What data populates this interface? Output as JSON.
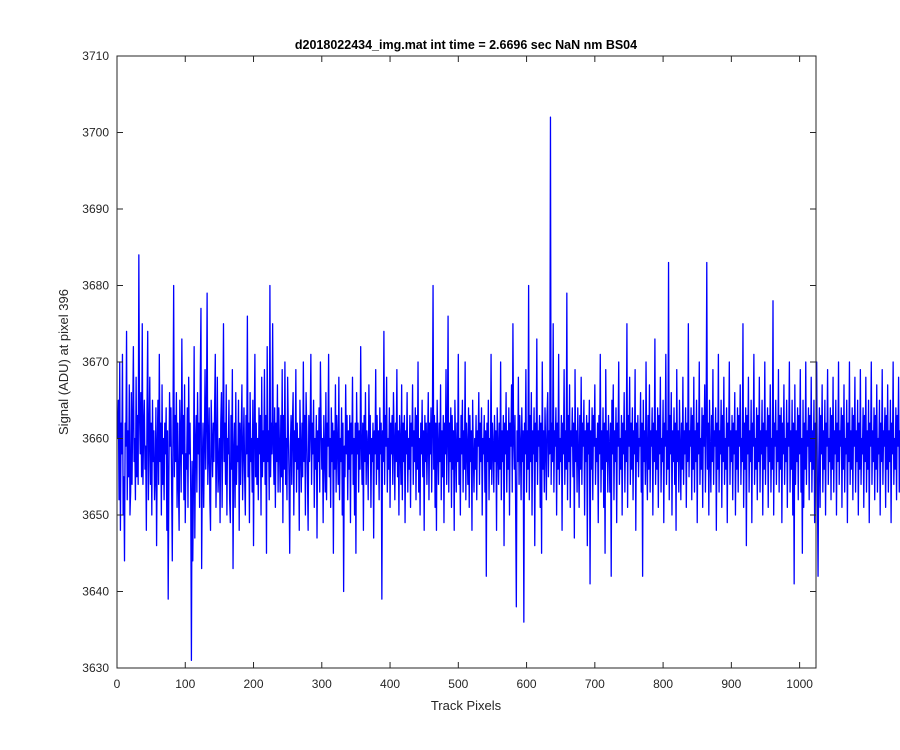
{
  "chart_data": {
    "type": "line",
    "title": "d2018022434_img.mat int time = 2.6696 sec  NaN nm BS04",
    "xlabel": "Track Pixels",
    "ylabel": "Signal (ADU) at pixel 396",
    "xlim": [
      0,
      1024
    ],
    "ylim": [
      3630,
      3710
    ],
    "xticks": [
      0,
      100,
      200,
      300,
      400,
      500,
      600,
      700,
      800,
      900,
      1000
    ],
    "yticks": [
      3630,
      3640,
      3650,
      3660,
      3670,
      3680,
      3690,
      3700,
      3710
    ],
    "xtick_labels": [
      "0",
      "100",
      "200",
      "300",
      "400",
      "500",
      "600",
      "700",
      "800",
      "900",
      "1000"
    ],
    "ytick_labels": [
      "3630",
      "3640",
      "3650",
      "3660",
      "3670",
      "3680",
      "3690",
      "3700",
      "3710"
    ],
    "grid": false,
    "series": [
      {
        "color": "#0000ff",
        "x_start": 1,
        "x_step": 1,
        "y": [
          3660,
          3665,
          3652,
          3670,
          3648,
          3662,
          3658,
          3671,
          3650,
          3655,
          3644,
          3662,
          3659,
          3674,
          3652,
          3661,
          3655,
          3667,
          3650,
          3653,
          3666,
          3654,
          3663,
          3672,
          3657,
          3660,
          3652,
          3668,
          3655,
          3663,
          3654,
          3684,
          3663,
          3658,
          3666,
          3655,
          3675,
          3654,
          3661,
          3665,
          3656,
          3659,
          3648,
          3664,
          3674,
          3652,
          3660,
          3668,
          3654,
          3662,
          3650,
          3665,
          3657,
          3661,
          3652,
          3655,
          3664,
          3646,
          3659,
          3665,
          3654,
          3671,
          3657,
          3662,
          3650,
          3667,
          3654,
          3660,
          3652,
          3662,
          3658,
          3664,
          3648,
          3661,
          3639,
          3655,
          3666,
          3659,
          3664,
          3654,
          3644,
          3661,
          3680,
          3655,
          3663,
          3657,
          3666,
          3651,
          3662,
          3654,
          3648,
          3665,
          3660,
          3653,
          3673,
          3658,
          3663,
          3652,
          3667,
          3649,
          3658,
          3656,
          3664,
          3651,
          3668,
          3658,
          3662,
          3653,
          3631,
          3657,
          3644,
          3654,
          3672,
          3647,
          3659,
          3663,
          3653,
          3666,
          3658,
          3662,
          3651,
          3668,
          3677,
          3643,
          3656,
          3662,
          3651,
          3659,
          3669,
          3656,
          3662,
          3679,
          3654,
          3658,
          3664,
          3652,
          3648,
          3665,
          3660,
          3655,
          3662,
          3657,
          3664,
          3671,
          3651,
          3658,
          3668,
          3653,
          3656,
          3660,
          3649,
          3662,
          3666,
          3651,
          3661,
          3675,
          3657,
          3662,
          3654,
          3667,
          3650,
          3660,
          3658,
          3665,
          3652,
          3649,
          3663,
          3656,
          3669,
          3643,
          3658,
          3662,
          3651,
          3666,
          3654,
          3659,
          3657,
          3665,
          3648,
          3662,
          3654,
          3661,
          3667,
          3652,
          3658,
          3664,
          3655,
          3650,
          3663,
          3658,
          3676,
          3655,
          3662,
          3649,
          3666,
          3657,
          3660,
          3653,
          3665,
          3646,
          3661,
          3671,
          3655,
          3662,
          3654,
          3660,
          3652,
          3664,
          3658,
          3663,
          3650,
          3668,
          3655,
          3661,
          3657,
          3669,
          3654,
          3663,
          3645,
          3672,
          3657,
          3661,
          3652,
          3680,
          3655,
          3662,
          3658,
          3675,
          3659,
          3654,
          3664,
          3651,
          3662,
          3657,
          3667,
          3653,
          3664,
          3659,
          3653,
          3663,
          3655,
          3669,
          3649,
          3663,
          3656,
          3670,
          3654,
          3660,
          3652,
          3668,
          3661,
          3655,
          3645,
          3659,
          3663,
          3654,
          3662,
          3666,
          3650,
          3661,
          3657,
          3669,
          3653,
          3662,
          3656,
          3660,
          3648,
          3665,
          3659,
          3653,
          3662,
          3655,
          3670,
          3657,
          3663,
          3650,
          3666,
          3661,
          3655,
          3648,
          3663,
          3657,
          3661,
          3671,
          3654,
          3662,
          3658,
          3665,
          3651,
          3660,
          3656,
          3663,
          3647,
          3661,
          3657,
          3664,
          3653,
          3670,
          3662,
          3656,
          3660,
          3649,
          3663,
          3658,
          3653,
          3666,
          3652,
          3662,
          3659,
          3671,
          3655,
          3660,
          3651,
          3664,
          3657,
          3662,
          3645,
          3661,
          3656,
          3667,
          3653,
          3663,
          3659,
          3654,
          3668,
          3652,
          3660,
          3657,
          3664,
          3650,
          3662,
          3640,
          3659,
          3655,
          3667,
          3658,
          3663,
          3652,
          3661,
          3656,
          3663,
          3649,
          3662,
          3658,
          3668,
          3654,
          3660,
          3650,
          3662,
          3645,
          3666,
          3658,
          3662,
          3653,
          3661,
          3656,
          3672,
          3659,
          3654,
          3662,
          3648,
          3663,
          3657,
          3666,
          3654,
          3661,
          3659,
          3652,
          3667,
          3658,
          3663,
          3651,
          3660,
          3657,
          3662,
          3647,
          3661,
          3658,
          3669,
          3654,
          3663,
          3656,
          3661,
          3652,
          3664,
          3658,
          3662,
          3639,
          3661,
          3657,
          3674,
          3654,
          3663,
          3659,
          3668,
          3653,
          3660,
          3656,
          3664,
          3651,
          3662,
          3658,
          3663,
          3654,
          3666,
          3660,
          3652,
          3662,
          3657,
          3669,
          3655,
          3661,
          3650,
          3663,
          3659,
          3654,
          3667,
          3652,
          3662,
          3657,
          3663,
          3649,
          3661,
          3658,
          3666,
          3653,
          3660,
          3656,
          3663,
          3651,
          3662,
          3659,
          3667,
          3654,
          3661,
          3657,
          3664,
          3652,
          3663,
          3656,
          3670,
          3653,
          3660,
          3650,
          3662,
          3658,
          3665,
          3655,
          3661,
          3648,
          3663,
          3657,
          3662,
          3654,
          3660,
          3666,
          3652,
          3662,
          3658,
          3664,
          3653,
          3661,
          3680,
          3656,
          3663,
          3651,
          3662,
          3648,
          3665,
          3659,
          3654,
          3662,
          3657,
          3667,
          3652,
          3661,
          3655,
          3663,
          3649,
          3662,
          3658,
          3669,
          3654,
          3660,
          3676,
          3653,
          3662,
          3657,
          3664,
          3651,
          3663,
          3656,
          3661,
          3648,
          3665,
          3659,
          3653,
          3662,
          3657,
          3671,
          3654,
          3660,
          3650,
          3663,
          3658,
          3665,
          3653,
          3661,
          3656,
          3670,
          3652,
          3662,
          3659,
          3654,
          3664,
          3651,
          3663,
          3657,
          3661,
          3648,
          3665,
          3658,
          3653,
          3660,
          3656,
          3663,
          3652,
          3661,
          3659,
          3666,
          3654,
          3662,
          3657,
          3664,
          3650,
          3660,
          3658,
          3663,
          3653,
          3661,
          3642,
          3662,
          3657,
          3665,
          3652,
          3660,
          3656,
          3671,
          3654,
          3662,
          3659,
          3653,
          3663,
          3657,
          3661,
          3648,
          3664,
          3659,
          3654,
          3662,
          3656,
          3670,
          3652,
          3661,
          3657,
          3663,
          3646,
          3662,
          3658,
          3666,
          3653,
          3661,
          3656,
          3664,
          3650,
          3662,
          3659,
          3667,
          3653,
          3675,
          3660,
          3656,
          3663,
          3651,
          3638,
          3661,
          3657,
          3668,
          3654,
          3663,
          3659,
          3652,
          3664,
          3657,
          3661,
          3636,
          3662,
          3658,
          3669,
          3653,
          3661,
          3656,
          3680,
          3652,
          3663,
          3657,
          3666,
          3650,
          3661,
          3658,
          3664,
          3646,
          3662,
          3657,
          3673,
          3654,
          3661,
          3659,
          3663,
          3651,
          3662,
          3645,
          3670,
          3656,
          3661,
          3653,
          3664,
          3659,
          3652,
          3663,
          3666,
          3655,
          3661,
          3658,
          3702,
          3654,
          3662,
          3657,
          3675,
          3653,
          3661,
          3659,
          3664,
          3650,
          3662,
          3656,
          3671,
          3654,
          3660,
          3657,
          3663,
          3648,
          3662,
          3658,
          3669,
          3654,
          3661,
          3656,
          3679,
          3652,
          3663,
          3657,
          3667,
          3651,
          3661,
          3659,
          3664,
          3655,
          3662,
          3647,
          3669,
          3657,
          3661,
          3653,
          3664,
          3658,
          3651,
          3663,
          3656,
          3668,
          3654,
          3662,
          3659,
          3665,
          3650,
          3661,
          3657,
          3663,
          3646,
          3662,
          3658,
          3665,
          3641,
          3661,
          3656,
          3664,
          3652,
          3663,
          3659,
          3667,
          3654,
          3660,
          3657,
          3662,
          3649,
          3663,
          3658,
          3671,
          3653,
          3661,
          3656,
          3664,
          3651,
          3662,
          3645,
          3669,
          3657,
          3661,
          3653,
          3663,
          3659,
          3653,
          3662,
          3642,
          3665,
          3658,
          3667,
          3652,
          3661,
          3657,
          3664,
          3649,
          3662,
          3659,
          3670,
          3654,
          3660,
          3656,
          3663,
          3650,
          3662,
          3658,
          3666,
          3653,
          3661,
          3657,
          3675,
          3651,
          3663,
          3659,
          3668,
          3654,
          3662,
          3656,
          3664,
          3652,
          3661,
          3658,
          3669,
          3648,
          3662,
          3657,
          3663,
          3655,
          3660,
          3659,
          3666,
          3653,
          3662,
          3642,
          3665,
          3657,
          3661,
          3654,
          3670,
          3658,
          3652,
          3663,
          3656,
          3667,
          3653,
          3661,
          3659,
          3664,
          3650,
          3662,
          3657,
          3673,
          3654,
          3661,
          3656,
          3664,
          3651,
          3663,
          3658,
          3668,
          3653,
          3660,
          3657,
          3665,
          3649,
          3662,
          3659,
          3671,
          3654,
          3661,
          3656,
          3683,
          3652,
          3663,
          3658,
          3666,
          3650,
          3661,
          3657,
          3664,
          3654,
          3662,
          3648,
          3669,
          3657,
          3661,
          3653,
          3665,
          3659,
          3652,
          3662,
          3656,
          3668,
          3654,
          3661,
          3658,
          3664,
          3651,
          3662,
          3657,
          3675,
          3655,
          3661,
          3659,
          3664,
          3652,
          3663,
          3656,
          3668,
          3653,
          3661,
          3657,
          3665,
          3649,
          3662,
          3658,
          3670,
          3654,
          3660,
          3656,
          3664,
          3651,
          3663,
          3659,
          3667,
          3653,
          3661,
          3683,
          3656,
          3662,
          3650,
          3665,
          3658,
          3653,
          3663,
          3657,
          3669,
          3654,
          3661,
          3659,
          3664,
          3648,
          3662,
          3656,
          3671,
          3653,
          3661,
          3658,
          3665,
          3651,
          3663,
          3657,
          3668,
          3654,
          3660,
          3656,
          3664,
          3649,
          3662,
          3659,
          3670,
          3654,
          3661,
          3657,
          3663,
          3652,
          3662,
          3658,
          3666,
          3650,
          3661,
          3656,
          3664,
          3653,
          3663,
          3659,
          3667,
          3654,
          3660,
          3657,
          3675,
          3651,
          3662,
          3656,
          3664,
          3646,
          3663,
          3658,
          3668,
          3653,
          3661,
          3657,
          3665,
          3649,
          3662,
          3659,
          3671,
          3654,
          3660,
          3656,
          3664,
          3652,
          3663,
          3657,
          3668,
          3653,
          3661,
          3658,
          3665,
          3650,
          3662,
          3656,
          3670,
          3654,
          3661,
          3659,
          3664,
          3651,
          3663,
          3657,
          3667,
          3653,
          3660,
          3656,
          3678,
          3650,
          3662,
          3659,
          3665,
          3654,
          3661,
          3657,
          3669,
          3653,
          3663,
          3656,
          3664,
          3649,
          3662,
          3658,
          3667,
          3654,
          3660,
          3657,
          3665,
          3651,
          3662,
          3659,
          3670,
          3653,
          3661,
          3656,
          3665,
          3650,
          3662,
          3641,
          3667,
          3654,
          3661,
          3657,
          3664,
          3652,
          3663,
          3658,
          3669,
          3653,
          3660,
          3645,
          3665,
          3651,
          3662,
          3656,
          3670,
          3654,
          3661,
          3659,
          3664,
          3652,
          3663,
          3657,
          3668,
          3653,
          3661,
          3656,
          3665,
          3649,
          3662,
          3659,
          3670,
          3654,
          3642,
          3657,
          3664,
          3651,
          3663,
          3658,
          3667,
          3653,
          3661,
          3656,
          3665,
          3650,
          3662,
          3659,
          3669,
          3654,
          3660,
          3657,
          3664,
          3652,
          3663,
          3656,
          3668,
          3653,
          3661,
          3658,
          3665,
          3650,
          3662,
          3657,
          3670,
          3654,
          3661,
          3659,
          3664,
          3651,
          3663,
          3656,
          3667,
          3653,
          3660,
          3658,
          3665,
          3649,
          3662,
          3657,
          3670,
          3654,
          3661,
          3656,
          3664,
          3652,
          3663,
          3659,
          3668,
          3653,
          3661,
          3657,
          3665,
          3650,
          3662,
          3656,
          3669,
          3654,
          3660,
          3658,
          3664,
          3651,
          3663,
          3657,
          3668,
          3653,
          3661,
          3656,
          3665,
          3649,
          3662,
          3659,
          3670,
          3654,
          3661,
          3657,
          3664,
          3652,
          3663,
          3656,
          3667,
          3653,
          3660,
          3658,
          3665,
          3650,
          3662,
          3657,
          3669,
          3654,
          3661,
          3659,
          3664,
          3651,
          3663,
          3656,
          3667,
          3653,
          3661,
          3657,
          3665,
          3649,
          3662,
          3658,
          3670,
          3654,
          3660,
          3656,
          3664,
          3652,
          3663,
          3659,
          3668,
          3653,
          3661,
          3657,
          3665,
          3650,
          3662
        ]
      }
    ]
  }
}
